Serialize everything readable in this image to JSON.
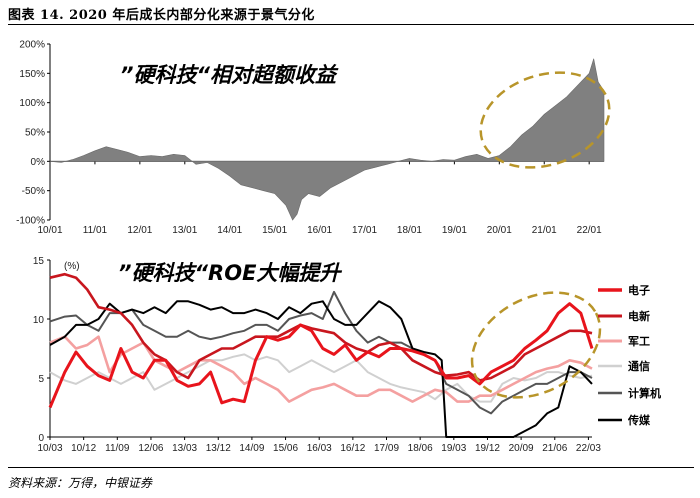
{
  "header": {
    "title": "图表 14. 2020 年后成长内部分化来源于景气分化"
  },
  "footer": {
    "source": "资料来源：万得，中银证券"
  },
  "colors": {
    "area": "#808080",
    "ellipse": "#b8952a",
    "电子": "#e8141c",
    "电新": "#c8161e",
    "军工": "#f4a0a0",
    "通信": "#d0d0d0",
    "计算机": "#555555",
    "传媒": "#000000"
  },
  "chart_data": [
    {
      "type": "area",
      "annotation": "”硬科技“相对超额收益",
      "ylim": [
        -100,
        200
      ],
      "yticks": [
        "200%",
        "150%",
        "100%",
        "50%",
        "0%",
        "-50%",
        "-100%"
      ],
      "ytick_values": [
        200,
        150,
        100,
        50,
        0,
        -50,
        -100
      ],
      "xticks": [
        "10/01",
        "11/01",
        "12/01",
        "13/01",
        "14/01",
        "15/01",
        "16/01",
        "17/01",
        "18/01",
        "19/01",
        "20/01",
        "21/01",
        "22/01"
      ],
      "xlim": [
        2010.0,
        2022.33
      ],
      "series": [
        {
          "x": [
            2010.0,
            2010.25,
            2010.5,
            2010.75,
            2011.0,
            2011.25,
            2011.5,
            2011.75,
            2012.0,
            2012.25,
            2012.5,
            2012.75,
            2013.0,
            2013.25,
            2013.5,
            2013.75,
            2014.0,
            2014.25,
            2014.5,
            2014.75,
            2015.0,
            2015.25,
            2015.4,
            2015.5,
            2015.6,
            2015.75,
            2016.0,
            2016.25,
            2016.5,
            2016.75,
            2017.0,
            2017.25,
            2017.5,
            2017.75,
            2018.0,
            2018.25,
            2018.5,
            2018.75,
            2019.0,
            2019.25,
            2019.5,
            2019.75,
            2020.0,
            2020.25,
            2020.5,
            2020.75,
            2021.0,
            2021.25,
            2021.5,
            2021.75,
            2022.0,
            2022.1,
            2022.2,
            2022.33
          ],
          "values": [
            0,
            -2,
            3,
            10,
            18,
            25,
            20,
            15,
            8,
            10,
            8,
            12,
            10,
            -5,
            -2,
            -12,
            -25,
            -40,
            -45,
            -50,
            -55,
            -75,
            -100,
            -90,
            -65,
            -55,
            -60,
            -45,
            -35,
            -25,
            -15,
            -10,
            -5,
            0,
            5,
            2,
            0,
            3,
            2,
            8,
            12,
            5,
            10,
            25,
            45,
            60,
            80,
            95,
            110,
            130,
            150,
            175,
            135,
            120
          ]
        }
      ]
    },
    {
      "type": "line",
      "annotation": "”硬科技“ROE大幅提升",
      "unit": "(%)",
      "ylim": [
        0,
        15
      ],
      "yticks": [
        "15",
        "10",
        "5",
        "0"
      ],
      "ytick_values": [
        15,
        10,
        5,
        0
      ],
      "xticks": [
        "10/03",
        "10/12",
        "11/09",
        "12/06",
        "13/03",
        "13/12",
        "14/09",
        "15/06",
        "16/03",
        "16/12",
        "17/09",
        "18/06",
        "19/03",
        "19/12",
        "20/09",
        "21/06",
        "22/03"
      ],
      "xlim": [
        2010.17,
        2022.25
      ],
      "series": [
        {
          "name": "电子",
          "x": [
            2010.17,
            2010.5,
            2010.75,
            2011.0,
            2011.25,
            2011.5,
            2011.75,
            2012.0,
            2012.25,
            2012.5,
            2012.75,
            2013.0,
            2013.25,
            2013.5,
            2013.75,
            2014.0,
            2014.25,
            2014.5,
            2014.75,
            2015.0,
            2015.25,
            2015.5,
            2015.75,
            2016.0,
            2016.25,
            2016.5,
            2016.75,
            2017.0,
            2017.25,
            2017.5,
            2017.75,
            2018.0,
            2018.25,
            2018.5,
            2018.75,
            2019.0,
            2019.25,
            2019.5,
            2019.75,
            2020.0,
            2020.25,
            2020.5,
            2020.75,
            2021.0,
            2021.25,
            2021.5,
            2021.75,
            2022.0,
            2022.25
          ],
          "values": [
            2.5,
            5.5,
            7.2,
            6.0,
            5.2,
            4.8,
            7.5,
            5.5,
            5.0,
            6.5,
            6.5,
            4.8,
            4.3,
            4.5,
            5.5,
            2.9,
            3.2,
            3.0,
            6.5,
            8.5,
            8.2,
            8.5,
            9.5,
            9.0,
            7.5,
            7.0,
            7.8,
            6.5,
            7.2,
            6.8,
            7.5,
            7.5,
            7.3,
            7.0,
            6.5,
            5.0,
            5.0,
            5.2,
            4.5,
            5.5,
            6.0,
            6.5,
            7.5,
            8.2,
            9.0,
            10.5,
            11.3,
            10.5,
            7.5
          ]
        },
        {
          "name": "电新",
          "x": [
            2010.17,
            2010.5,
            2010.75,
            2011.0,
            2011.25,
            2011.5,
            2011.75,
            2012.0,
            2012.25,
            2012.5,
            2012.75,
            2013.0,
            2013.25,
            2013.5,
            2013.75,
            2014.0,
            2014.25,
            2014.5,
            2014.75,
            2015.0,
            2015.25,
            2015.5,
            2015.75,
            2016.0,
            2016.25,
            2016.5,
            2016.75,
            2017.0,
            2017.25,
            2017.5,
            2017.75,
            2018.0,
            2018.25,
            2018.5,
            2018.75,
            2019.0,
            2019.25,
            2019.5,
            2019.75,
            2020.0,
            2020.25,
            2020.5,
            2020.75,
            2021.0,
            2021.25,
            2021.5,
            2021.75,
            2022.0,
            2022.25
          ],
          "values": [
            13.5,
            13.8,
            13.5,
            12.5,
            11.0,
            10.8,
            10.5,
            9.5,
            8.0,
            7.0,
            6.5,
            5.5,
            5.0,
            6.5,
            7.0,
            7.5,
            7.5,
            8.0,
            8.5,
            8.5,
            8.5,
            9.0,
            9.5,
            9.2,
            9.0,
            8.8,
            8.0,
            7.5,
            7.2,
            7.8,
            8.0,
            7.5,
            6.5,
            6.0,
            5.5,
            5.2,
            5.3,
            5.5,
            4.8,
            5.0,
            5.5,
            6.0,
            7.0,
            7.5,
            8.0,
            8.5,
            9.0,
            9.0,
            8.8
          ]
        },
        {
          "name": "军工",
          "x": [
            2010.17,
            2010.5,
            2010.75,
            2011.0,
            2011.25,
            2011.5,
            2011.75,
            2012.0,
            2012.25,
            2012.5,
            2012.75,
            2013.0,
            2013.25,
            2013.5,
            2013.75,
            2014.0,
            2014.25,
            2014.5,
            2014.75,
            2015.0,
            2015.25,
            2015.5,
            2015.75,
            2016.0,
            2016.25,
            2016.5,
            2016.75,
            2017.0,
            2017.25,
            2017.5,
            2017.75,
            2018.0,
            2018.25,
            2018.5,
            2018.75,
            2019.0,
            2019.25,
            2019.5,
            2019.75,
            2020.0,
            2020.25,
            2020.5,
            2020.75,
            2021.0,
            2021.25,
            2021.5,
            2021.75,
            2022.0,
            2022.25
          ],
          "values": [
            8.0,
            8.5,
            7.5,
            7.8,
            8.5,
            5.5,
            7.0,
            7.5,
            8.0,
            6.5,
            6.0,
            5.5,
            6.0,
            6.5,
            6.5,
            6.0,
            5.5,
            4.5,
            5.0,
            4.5,
            4.0,
            3.0,
            3.5,
            4.0,
            4.2,
            4.5,
            4.0,
            3.5,
            3.5,
            4.0,
            4.0,
            3.5,
            3.0,
            3.5,
            4.0,
            3.8,
            3.0,
            3.0,
            3.5,
            3.5,
            4.0,
            4.5,
            5.0,
            5.5,
            5.8,
            6.0,
            6.5,
            6.3,
            5.8
          ]
        },
        {
          "name": "通信",
          "x": [
            2010.17,
            2010.5,
            2010.75,
            2011.0,
            2011.25,
            2011.5,
            2011.75,
            2012.0,
            2012.25,
            2012.5,
            2012.75,
            2013.0,
            2013.25,
            2013.5,
            2013.75,
            2014.0,
            2014.25,
            2014.5,
            2014.75,
            2015.0,
            2015.25,
            2015.5,
            2015.75,
            2016.0,
            2016.25,
            2016.5,
            2016.75,
            2017.0,
            2017.25,
            2017.5,
            2017.75,
            2018.0,
            2018.25,
            2018.5,
            2018.75,
            2019.0,
            2019.25,
            2019.5,
            2019.75,
            2020.0,
            2020.25,
            2020.5,
            2020.75,
            2021.0,
            2021.25,
            2021.5,
            2021.75,
            2022.0,
            2022.25
          ],
          "values": [
            5.5,
            4.8,
            4.5,
            5.0,
            5.5,
            5.0,
            4.5,
            5.0,
            5.5,
            4.0,
            4.5,
            5.0,
            5.5,
            6.0,
            6.5,
            6.5,
            6.8,
            7.0,
            6.5,
            6.8,
            6.5,
            5.5,
            6.0,
            6.5,
            6.0,
            5.5,
            6.0,
            6.5,
            5.5,
            5.0,
            4.5,
            4.2,
            4.0,
            3.8,
            3.2,
            4.0,
            4.5,
            3.5,
            3.0,
            3.0,
            4.5,
            5.0,
            4.8,
            5.0,
            5.5,
            5.5,
            5.2,
            5.0,
            5.2
          ]
        },
        {
          "name": "计算机",
          "x": [
            2010.17,
            2010.5,
            2010.75,
            2011.0,
            2011.25,
            2011.5,
            2011.75,
            2012.0,
            2012.25,
            2012.5,
            2012.75,
            2013.0,
            2013.25,
            2013.5,
            2013.75,
            2014.0,
            2014.25,
            2014.5,
            2014.75,
            2015.0,
            2015.25,
            2015.5,
            2015.75,
            2016.0,
            2016.25,
            2016.5,
            2016.75,
            2017.0,
            2017.25,
            2017.5,
            2017.75,
            2018.0,
            2018.25,
            2018.5,
            2018.75,
            2019.0,
            2019.25,
            2019.5,
            2019.75,
            2020.0,
            2020.25,
            2020.5,
            2020.75,
            2021.0,
            2021.25,
            2021.5,
            2021.75,
            2022.0,
            2022.25
          ],
          "values": [
            9.8,
            10.2,
            10.3,
            9.5,
            9.0,
            10.5,
            10.5,
            10.8,
            9.5,
            9.0,
            8.5,
            8.5,
            9.0,
            8.5,
            8.3,
            8.5,
            8.8,
            9.0,
            9.5,
            9.5,
            9.0,
            10.0,
            10.3,
            10.5,
            10.0,
            12.3,
            10.5,
            9.0,
            8.0,
            8.5,
            8.0,
            8.0,
            7.5,
            7.0,
            6.5,
            4.5,
            4.0,
            3.5,
            2.5,
            2.0,
            3.0,
            3.5,
            4.0,
            4.5,
            4.5,
            5.0,
            5.5,
            5.5,
            5.0
          ]
        },
        {
          "name": "传媒",
          "x": [
            2010.17,
            2010.5,
            2010.75,
            2011.0,
            2011.25,
            2011.5,
            2011.75,
            2012.0,
            2012.25,
            2012.5,
            2012.75,
            2013.0,
            2013.25,
            2013.5,
            2013.75,
            2014.0,
            2014.25,
            2014.5,
            2014.75,
            2015.0,
            2015.25,
            2015.5,
            2015.75,
            2016.0,
            2016.25,
            2016.5,
            2016.75,
            2017.0,
            2017.25,
            2017.5,
            2017.75,
            2018.0,
            2018.25,
            2018.5,
            2018.75,
            2018.9,
            2019.0,
            2019.25,
            2020.5,
            2020.75,
            2021.0,
            2021.25,
            2021.5,
            2021.75,
            2022.0,
            2022.25
          ],
          "values": [
            7.8,
            8.5,
            9.5,
            9.5,
            10.0,
            11.3,
            10.5,
            10.8,
            10.5,
            11.0,
            10.5,
            11.5,
            11.5,
            11.2,
            10.8,
            11.0,
            10.5,
            10.5,
            10.8,
            10.5,
            10.0,
            11.0,
            10.5,
            11.3,
            11.5,
            10.0,
            9.5,
            9.5,
            10.5,
            11.5,
            11.0,
            10.0,
            7.5,
            7.2,
            7.0,
            6.5,
            -2.0,
            -2.0,
            -2.0,
            0.5,
            1.0,
            2.0,
            2.5,
            6.0,
            5.5,
            4.5
          ]
        }
      ],
      "legend_position": "right"
    }
  ]
}
